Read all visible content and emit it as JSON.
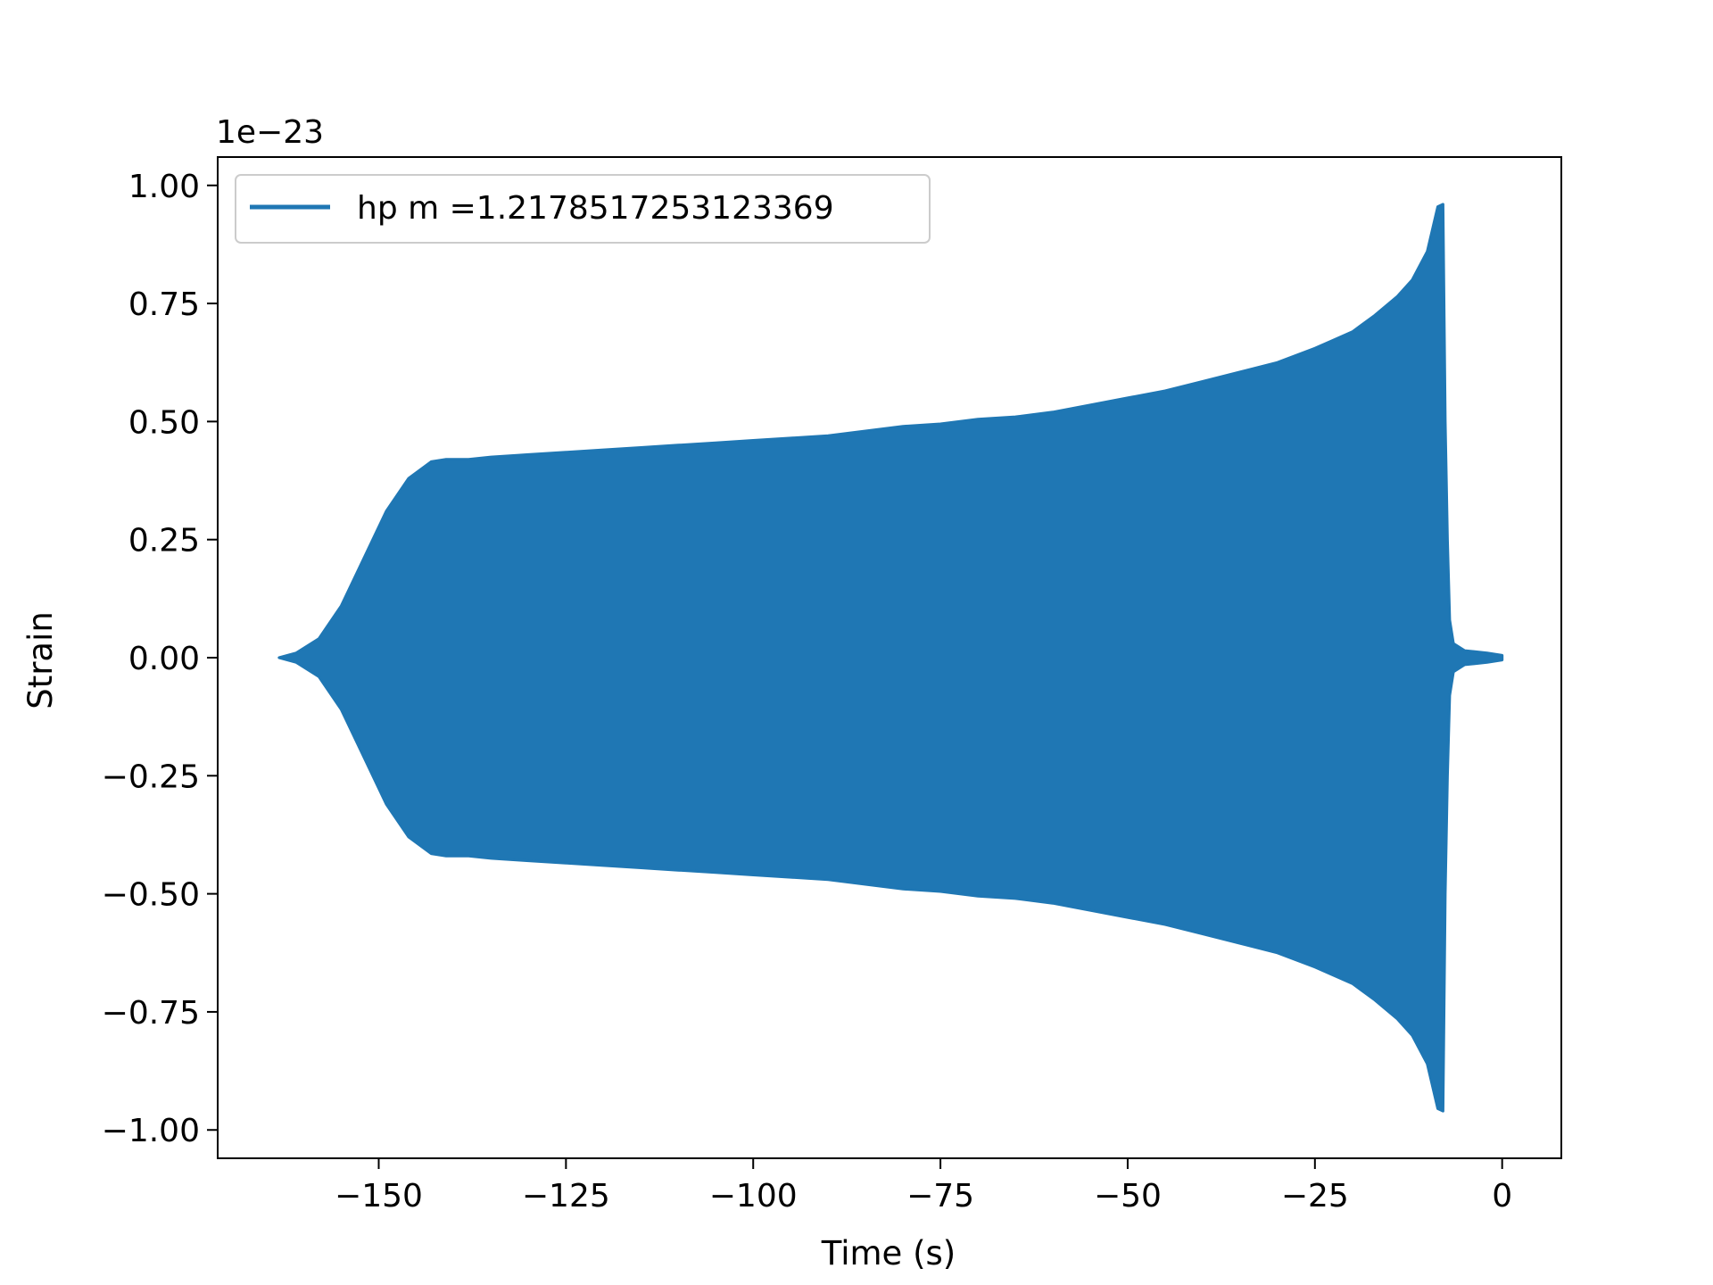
{
  "chart_data": {
    "type": "line",
    "title": "",
    "xlabel": "Time (s)",
    "ylabel": "Strain",
    "y_offset_label": "1e−23",
    "xlim": [
      -171.5,
      7.9
    ],
    "ylim": [
      -1.06,
      1.06
    ],
    "grid": false,
    "legend_position": "upper left",
    "x_ticks": [
      -150,
      -125,
      -100,
      -75,
      -50,
      -25,
      0
    ],
    "x_tick_labels": [
      "−150",
      "−125",
      "−100",
      "−75",
      "−50",
      "−25",
      "0"
    ],
    "y_ticks": [
      -1.0,
      -0.75,
      -0.5,
      -0.25,
      0.0,
      0.25,
      0.5,
      0.75,
      1.0
    ],
    "y_tick_labels": [
      "−1.00",
      "−0.75",
      "−0.50",
      "−0.25",
      "0.00",
      "0.25",
      "0.50",
      "0.75",
      "1.00"
    ],
    "series": [
      {
        "name": "hp m =1.2178517253123369",
        "color": "#1f77b4",
        "envelope_upper": [
          [
            -163.3,
            0.0
          ],
          [
            -161,
            0.01
          ],
          [
            -158,
            0.04
          ],
          [
            -155,
            0.11
          ],
          [
            -152,
            0.21
          ],
          [
            -149,
            0.31
          ],
          [
            -146,
            0.38
          ],
          [
            -143,
            0.415
          ],
          [
            -141,
            0.42
          ],
          [
            -138,
            0.42
          ],
          [
            -135,
            0.425
          ],
          [
            -130,
            0.43
          ],
          [
            -125,
            0.435
          ],
          [
            -120,
            0.44
          ],
          [
            -115,
            0.445
          ],
          [
            -110,
            0.45
          ],
          [
            -105,
            0.455
          ],
          [
            -100,
            0.46
          ],
          [
            -95,
            0.465
          ],
          [
            -90,
            0.47
          ],
          [
            -85,
            0.48
          ],
          [
            -80,
            0.49
          ],
          [
            -75,
            0.495
          ],
          [
            -70,
            0.505
          ],
          [
            -65,
            0.51
          ],
          [
            -60,
            0.52
          ],
          [
            -55,
            0.535
          ],
          [
            -50,
            0.55
          ],
          [
            -45,
            0.565
          ],
          [
            -40,
            0.585
          ],
          [
            -35,
            0.605
          ],
          [
            -30,
            0.625
          ],
          [
            -25,
            0.655
          ],
          [
            -20,
            0.69
          ],
          [
            -17,
            0.725
          ],
          [
            -14,
            0.765
          ],
          [
            -12,
            0.8
          ],
          [
            -10,
            0.86
          ],
          [
            -8.6,
            0.955
          ],
          [
            -7.9,
            0.96
          ],
          [
            -7.6,
            0.5
          ],
          [
            -7.3,
            0.25
          ],
          [
            -7.0,
            0.08
          ],
          [
            -6.5,
            0.03
          ],
          [
            -5,
            0.015
          ],
          [
            -2,
            0.01
          ],
          [
            0,
            0.005
          ]
        ],
        "envelope_lower": [
          [
            -163.3,
            0.0
          ],
          [
            -161,
            -0.01
          ],
          [
            -158,
            -0.04
          ],
          [
            -155,
            -0.11
          ],
          [
            -152,
            -0.21
          ],
          [
            -149,
            -0.31
          ],
          [
            -146,
            -0.38
          ],
          [
            -143,
            -0.415
          ],
          [
            -141,
            -0.42
          ],
          [
            -138,
            -0.42
          ],
          [
            -135,
            -0.425
          ],
          [
            -130,
            -0.43
          ],
          [
            -125,
            -0.435
          ],
          [
            -120,
            -0.44
          ],
          [
            -115,
            -0.445
          ],
          [
            -110,
            -0.45
          ],
          [
            -105,
            -0.455
          ],
          [
            -100,
            -0.46
          ],
          [
            -95,
            -0.465
          ],
          [
            -90,
            -0.47
          ],
          [
            -85,
            -0.48
          ],
          [
            -80,
            -0.49
          ],
          [
            -75,
            -0.495
          ],
          [
            -70,
            -0.505
          ],
          [
            -65,
            -0.51
          ],
          [
            -60,
            -0.52
          ],
          [
            -55,
            -0.535
          ],
          [
            -50,
            -0.55
          ],
          [
            -45,
            -0.565
          ],
          [
            -40,
            -0.585
          ],
          [
            -35,
            -0.605
          ],
          [
            -30,
            -0.625
          ],
          [
            -25,
            -0.655
          ],
          [
            -20,
            -0.69
          ],
          [
            -17,
            -0.725
          ],
          [
            -14,
            -0.765
          ],
          [
            -12,
            -0.8
          ],
          [
            -10,
            -0.86
          ],
          [
            -8.6,
            -0.955
          ],
          [
            -7.9,
            -0.96
          ],
          [
            -7.6,
            -0.5
          ],
          [
            -7.3,
            -0.25
          ],
          [
            -7.0,
            -0.08
          ],
          [
            -6.5,
            -0.03
          ],
          [
            -5,
            -0.015
          ],
          [
            -2,
            -0.01
          ],
          [
            0,
            -0.005
          ]
        ]
      }
    ]
  }
}
